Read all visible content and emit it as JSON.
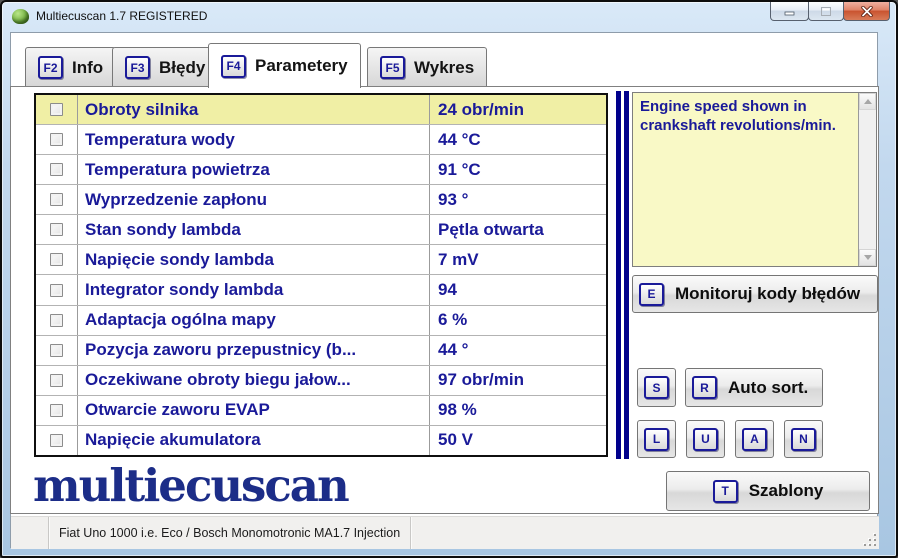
{
  "window": {
    "title": "Multiecuscan 1.7 REGISTERED"
  },
  "tabs": [
    {
      "key": "F2",
      "label": "Info",
      "active": false
    },
    {
      "key": "F3",
      "label": "Błędy",
      "active": false
    },
    {
      "key": "F4",
      "label": "Parametery",
      "active": true
    },
    {
      "key": "F5",
      "label": "Wykres",
      "active": false
    }
  ],
  "table": {
    "rows": [
      {
        "name": "Obroty silnika",
        "value": "24 obr/min",
        "highlighted": true,
        "checked": false
      },
      {
        "name": "Temperatura wody",
        "value": "44 °C",
        "highlighted": false,
        "checked": false
      },
      {
        "name": "Temperatura powietrza",
        "value": "91 °C",
        "highlighted": false,
        "checked": false
      },
      {
        "name": "Wyprzedzenie zapłonu",
        "value": "93 °",
        "highlighted": false,
        "checked": false
      },
      {
        "name": "Stan sondy lambda",
        "value": "Pętla otwarta",
        "highlighted": false,
        "checked": false
      },
      {
        "name": "Napięcie sondy lambda",
        "value": "7 mV",
        "highlighted": false,
        "checked": false
      },
      {
        "name": "Integrator sondy lambda",
        "value": "94",
        "highlighted": false,
        "checked": false
      },
      {
        "name": "Adaptacja ogólna mapy",
        "value": "6 %",
        "highlighted": false,
        "checked": false
      },
      {
        "name": "Pozycja zaworu przepustnicy (b...",
        "value": "44 °",
        "highlighted": false,
        "checked": false
      },
      {
        "name": "Oczekiwane obroty biegu jałow...",
        "value": "97 obr/min",
        "highlighted": false,
        "checked": false
      },
      {
        "name": "Otwarcie zaworu EVAP",
        "value": "98 %",
        "highlighted": false,
        "checked": false
      },
      {
        "name": "Napięcie akumulatora",
        "value": "50 V",
        "highlighted": false,
        "checked": false
      }
    ]
  },
  "info_box": {
    "text": "Engine speed shown in crankshaft revolutions/min."
  },
  "buttons": {
    "monitor": {
      "key": "E",
      "label": "Monitoruj kody błędów"
    },
    "s": {
      "key": "S"
    },
    "auto_sort": {
      "key": "R",
      "label": "Auto sort."
    },
    "l": {
      "key": "L"
    },
    "u": {
      "key": "U"
    },
    "a": {
      "key": "A"
    },
    "n": {
      "key": "N"
    },
    "templates": {
      "key": "T",
      "label": "Szablony"
    }
  },
  "logo": {
    "text": "multiecuscan"
  },
  "status_bar": {
    "vehicle": "Fiat Uno 1000 i.e. Eco / Bosch Monomotronic MA1.7 Injection"
  },
  "colors": {
    "accent_navy": "#1a1a99",
    "separator_navy": "#00008c",
    "row_highlight": "#f0efa5",
    "info_bg": "#f9f9c6",
    "close_red": "#c9532f"
  }
}
